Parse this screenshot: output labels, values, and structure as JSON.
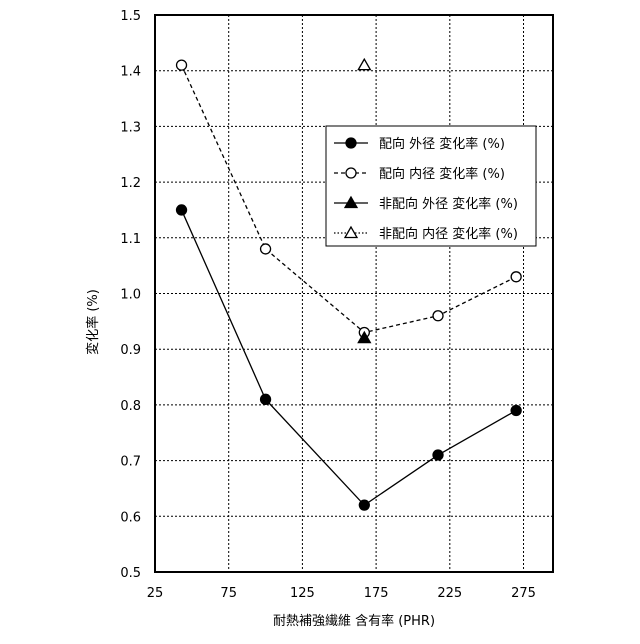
{
  "chart_data": {
    "type": "line",
    "xlabel": "耐熱補強繊維 含有率 (PHR)",
    "ylabel": "変化率 (%)",
    "xlim": [
      25,
      295
    ],
    "ylim": [
      0.5,
      1.5
    ],
    "xticks": [
      25,
      75,
      125,
      175,
      225,
      275
    ],
    "yticks": [
      0.5,
      0.6,
      0.7,
      0.8,
      0.9,
      1.0,
      1.1,
      1.2,
      1.3,
      1.4,
      1.5
    ],
    "ytick_labels": [
      "0.5",
      "0.6",
      "0.7",
      "0.8",
      "0.9",
      "1.0",
      "1.1",
      "1.2",
      "1.3",
      "1.4",
      "1.5"
    ],
    "grid": true,
    "legend_position": "right",
    "series": [
      {
        "name": "配向 外径 変化率 (%)",
        "x": [
          43,
          100,
          167,
          217,
          270
        ],
        "y": [
          1.15,
          0.81,
          0.62,
          0.71,
          0.79
        ],
        "marker": "circle",
        "filled": true,
        "line": "solid"
      },
      {
        "name": "配向 内径 変化率 (%)",
        "x": [
          43,
          100,
          167,
          217,
          270
        ],
        "y": [
          1.41,
          1.08,
          0.93,
          0.96,
          1.03
        ],
        "marker": "circle",
        "filled": false,
        "line": "dashed"
      },
      {
        "name": "非配向 外径 変化率 (%)",
        "x": [
          167
        ],
        "y": [
          0.92
        ],
        "marker": "triangle",
        "filled": true,
        "line": "solid"
      },
      {
        "name": "非配向 内径 変化率 (%)",
        "x": [
          167
        ],
        "y": [
          1.41
        ],
        "marker": "triangle",
        "filled": false,
        "line": "dotted"
      }
    ]
  }
}
